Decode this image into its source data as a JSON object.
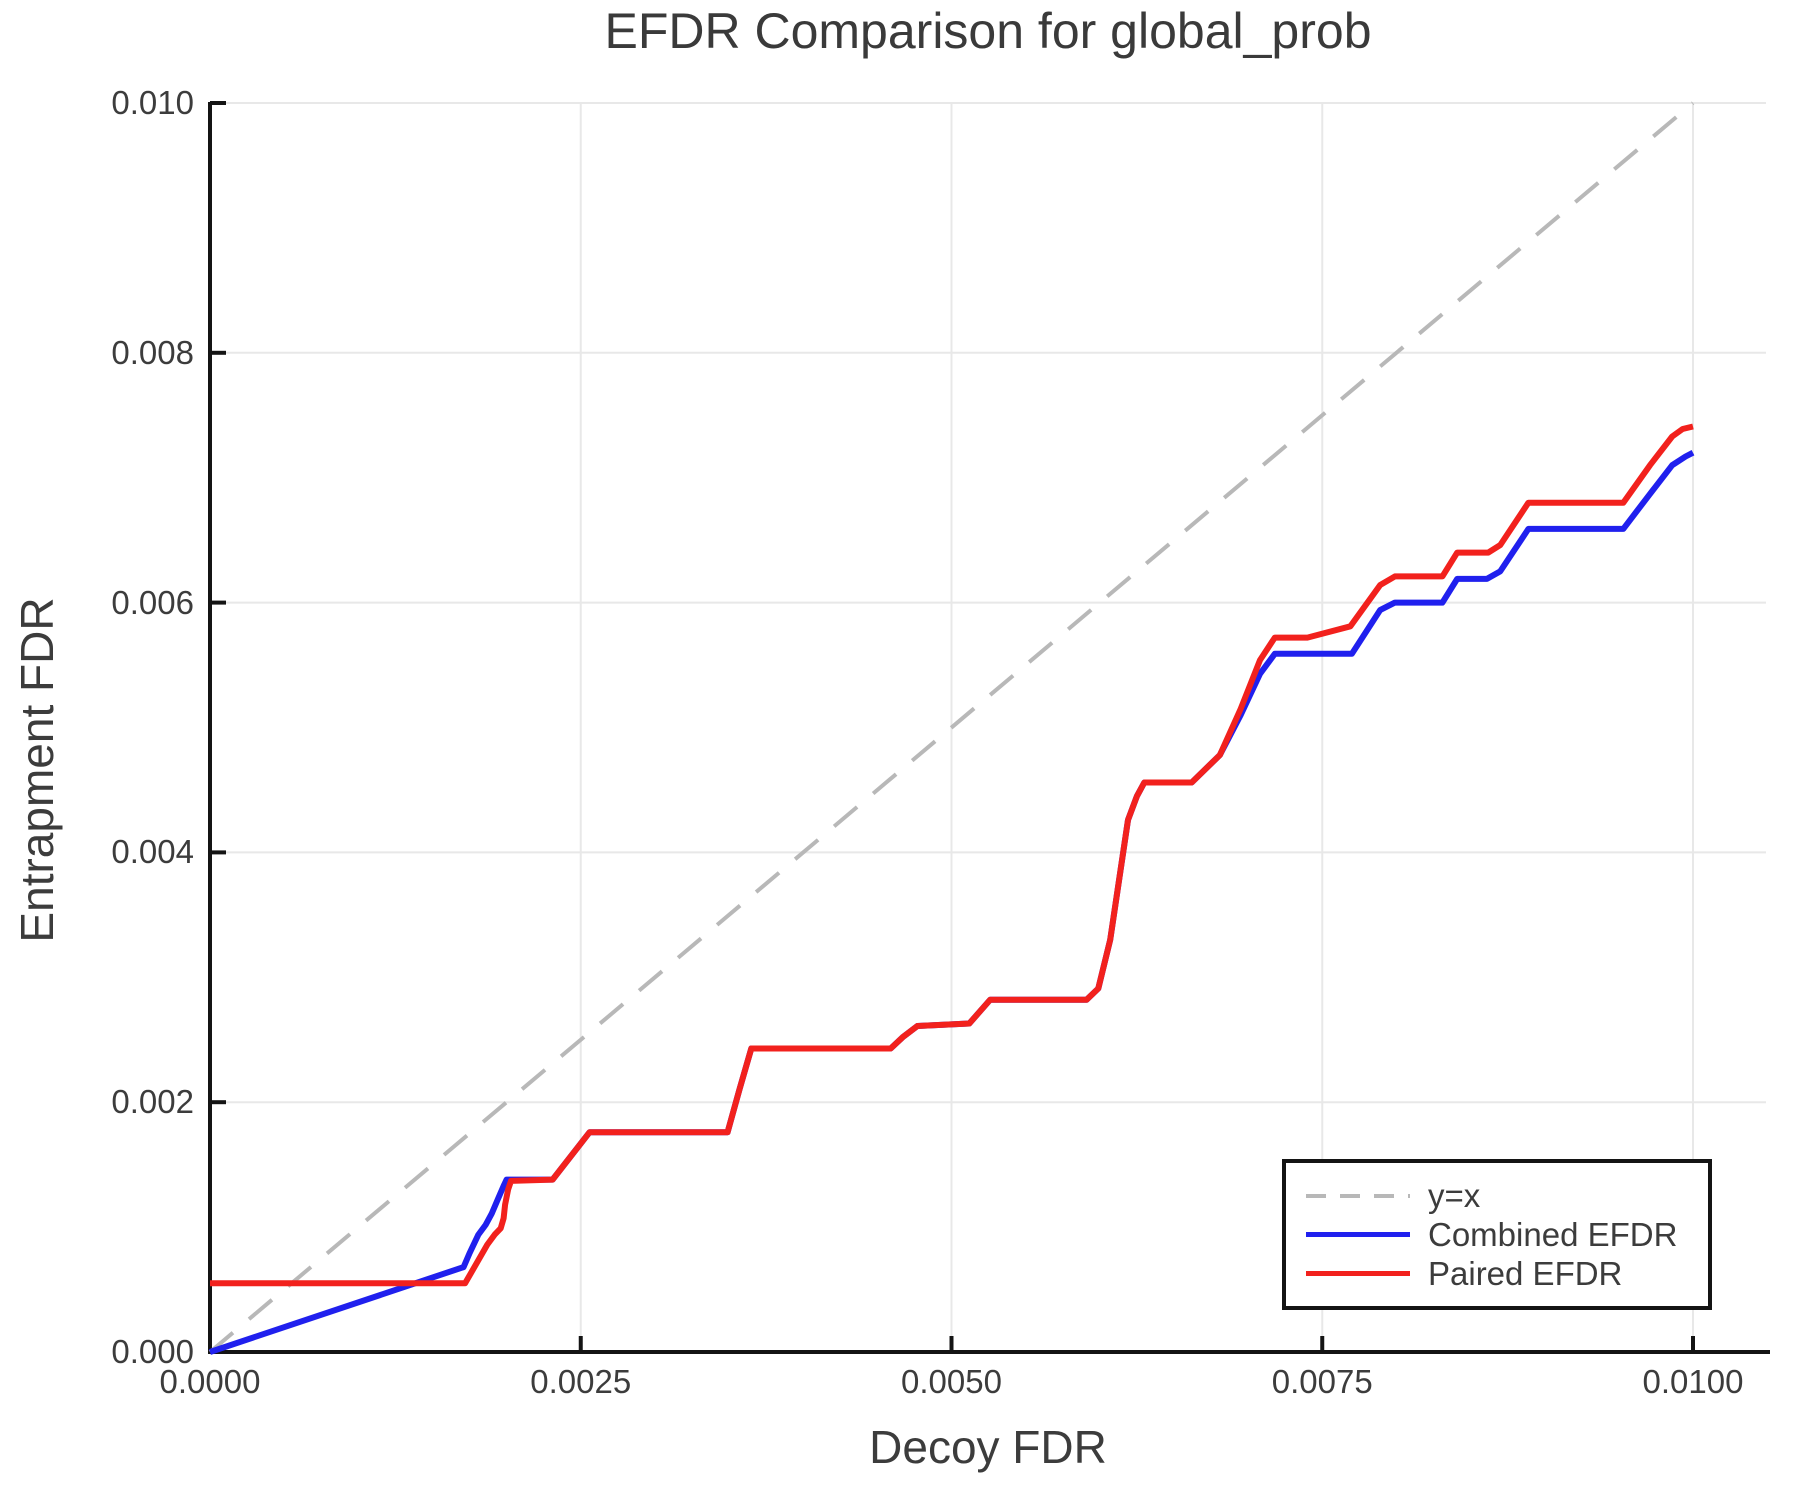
{
  "chart_data": {
    "type": "line",
    "title": "EFDR Comparison for global_prob",
    "xlabel": "Decoy FDR",
    "ylabel": "Entrapment FDR",
    "xlim": [
      0.0,
      0.01049
    ],
    "ylim": [
      0.0,
      0.01
    ],
    "grid": true,
    "legend_position": "lower right",
    "xticks": {
      "values": [
        0.0,
        0.0025,
        0.005,
        0.0075,
        0.01
      ],
      "labels": [
        "0.0000",
        "0.0025",
        "0.0050",
        "0.0075",
        "0.0100"
      ]
    },
    "yticks": {
      "values": [
        0.0,
        0.002,
        0.004,
        0.006,
        0.008,
        0.01
      ],
      "labels": [
        "0.000",
        "0.002",
        "0.004",
        "0.006",
        "0.008",
        "0.010"
      ]
    },
    "series": [
      {
        "id": "yx",
        "name": "y=x",
        "color": "#b8b8b8",
        "style": "dashed",
        "dash": "30 21",
        "width": 4,
        "points": [
          [
            0.0,
            0.0
          ],
          [
            0.01,
            0.01
          ]
        ]
      },
      {
        "id": "combined-efdr",
        "name": "Combined EFDR",
        "color": "#2020ee",
        "style": "solid",
        "dash": "",
        "width": 6,
        "points": [
          [
            0.0,
            0.0
          ],
          [
            0.00171,
            0.00068
          ],
          [
            0.00175,
            0.00079
          ],
          [
            0.00181,
            0.00094
          ],
          [
            0.00186,
            0.00102
          ],
          [
            0.0019,
            0.00111
          ],
          [
            0.00194,
            0.00122
          ],
          [
            0.00198,
            0.00133
          ],
          [
            0.002,
            0.00138
          ],
          [
            0.00231,
            0.00138
          ],
          [
            0.00256,
            0.00176
          ],
          [
            0.00349,
            0.00176
          ],
          [
            0.00357,
            0.0021
          ],
          [
            0.00365,
            0.00243
          ],
          [
            0.00459,
            0.00243
          ],
          [
            0.00467,
            0.00252
          ],
          [
            0.00477,
            0.00261
          ],
          [
            0.00512,
            0.00263
          ],
          [
            0.00526,
            0.00282
          ],
          [
            0.00591,
            0.00282
          ],
          [
            0.00599,
            0.00291
          ],
          [
            0.00607,
            0.0033
          ],
          [
            0.00619,
            0.00426
          ],
          [
            0.00625,
            0.00445
          ],
          [
            0.0063,
            0.00456
          ],
          [
            0.00662,
            0.00456
          ],
          [
            0.00681,
            0.00478
          ],
          [
            0.00695,
            0.0051
          ],
          [
            0.00708,
            0.00543
          ],
          [
            0.00718,
            0.00559
          ],
          [
            0.0077,
            0.00559
          ],
          [
            0.00789,
            0.00594
          ],
          [
            0.00799,
            0.006
          ],
          [
            0.00831,
            0.006
          ],
          [
            0.00841,
            0.00619
          ],
          [
            0.00861,
            0.00619
          ],
          [
            0.0087,
            0.00625
          ],
          [
            0.00889,
            0.00659
          ],
          [
            0.00953,
            0.00659
          ],
          [
            0.00971,
            0.00687
          ],
          [
            0.00986,
            0.0071
          ],
          [
            0.00995,
            0.00717
          ],
          [
            0.01,
            0.0072
          ]
        ]
      },
      {
        "id": "paired-efdr",
        "name": "Paired EFDR",
        "color": "#f2211d",
        "style": "solid",
        "dash": "",
        "width": 6,
        "points": [
          [
            0.0,
            0.00055
          ],
          [
            0.00172,
            0.00055
          ],
          [
            0.00187,
            0.00086
          ],
          [
            0.00192,
            0.00094
          ],
          [
            0.00196,
            0.00099
          ],
          [
            0.00198,
            0.00107
          ],
          [
            0.00199,
            0.00118
          ],
          [
            0.00201,
            0.0013
          ],
          [
            0.00203,
            0.00137
          ],
          [
            0.00231,
            0.00138
          ],
          [
            0.00256,
            0.00176
          ],
          [
            0.00349,
            0.00176
          ],
          [
            0.00357,
            0.0021
          ],
          [
            0.00365,
            0.00243
          ],
          [
            0.00459,
            0.00243
          ],
          [
            0.00467,
            0.00252
          ],
          [
            0.00477,
            0.00261
          ],
          [
            0.00512,
            0.00263
          ],
          [
            0.00526,
            0.00282
          ],
          [
            0.00591,
            0.00282
          ],
          [
            0.00599,
            0.00291
          ],
          [
            0.00607,
            0.0033
          ],
          [
            0.00619,
            0.00426
          ],
          [
            0.00625,
            0.00445
          ],
          [
            0.0063,
            0.00456
          ],
          [
            0.00662,
            0.00456
          ],
          [
            0.00681,
            0.00478
          ],
          [
            0.00695,
            0.00515
          ],
          [
            0.00708,
            0.00554
          ],
          [
            0.00718,
            0.00572
          ],
          [
            0.0074,
            0.00572
          ],
          [
            0.00769,
            0.00581
          ],
          [
            0.00789,
            0.00614
          ],
          [
            0.00799,
            0.00621
          ],
          [
            0.00831,
            0.00621
          ],
          [
            0.00841,
            0.0064
          ],
          [
            0.00862,
            0.0064
          ],
          [
            0.0087,
            0.00646
          ],
          [
            0.00889,
            0.0068
          ],
          [
            0.00953,
            0.0068
          ],
          [
            0.00971,
            0.0071
          ],
          [
            0.00986,
            0.00733
          ],
          [
            0.00993,
            0.00739
          ],
          [
            0.01,
            0.00741
          ]
        ]
      }
    ]
  }
}
